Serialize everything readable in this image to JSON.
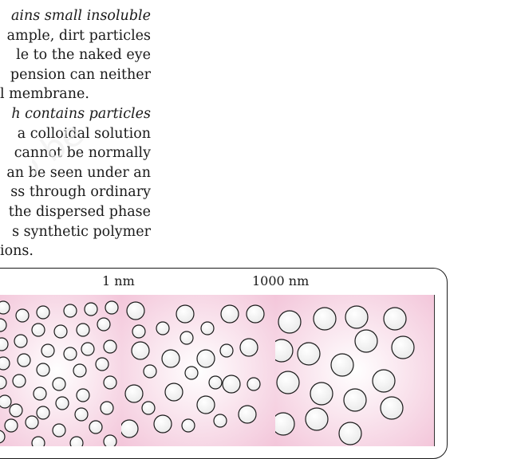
{
  "paragraph_lines": [
    {
      "pre": "",
      "em": "ains small insoluble",
      "post": ""
    },
    {
      "pre": "ample, dirt particles",
      "em": "",
      "post": ""
    },
    {
      "pre": "le to the naked eye",
      "em": "",
      "post": ""
    },
    {
      "pre": "pension can neither",
      "em": "",
      "post": ""
    },
    {
      "pre": "l membrane.",
      "em": "",
      "post": "",
      "left": true
    },
    {
      "pre": "",
      "em": "h contains particles",
      "post": ""
    },
    {
      "pre": "a colloidal solution",
      "em": "",
      "post": ""
    },
    {
      "pre": "cannot be normally",
      "em": "",
      "post": ""
    },
    {
      "pre": "an be seen under an",
      "em": "",
      "post": ""
    },
    {
      "pre": "ss through ordinary",
      "em": "",
      "post": ""
    },
    {
      "pre": "the dispersed phase",
      "em": "",
      "post": ""
    },
    {
      "pre": "s synthetic polymer",
      "em": "",
      "post": ""
    },
    {
      "pre": "ions.",
      "em": "",
      "post": "",
      "left": true
    }
  ],
  "figure": {
    "label_1": "1 nm",
    "label_2": "1000 nm"
  },
  "colors": {
    "panel_pink": "#f3c6da",
    "particle_fill": "#e9e9e9",
    "outline": "#1a1a1a"
  }
}
